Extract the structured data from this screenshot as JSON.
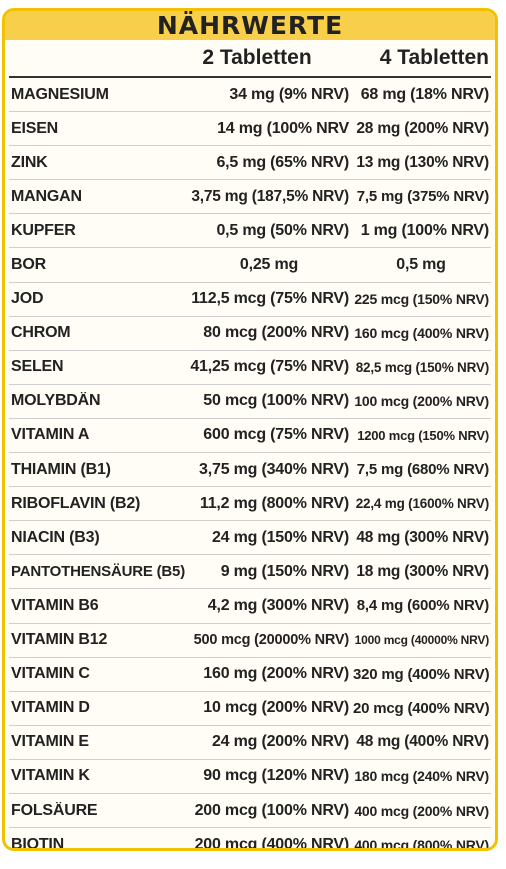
{
  "title": "NÄHRWERTE",
  "columns": [
    "",
    "2 Tabletten",
    "4 Tabletten"
  ],
  "rows": [
    {
      "name": "MAGNESIUM",
      "v2": "34 mg (9% NRV)",
      "v4": "68 mg (18% NRV)"
    },
    {
      "name": "EISEN",
      "v2": "14 mg (100% NRV",
      "v4": "28 mg (200% NRV)"
    },
    {
      "name": "ZINK",
      "v2": "6,5 mg (65% NRV)",
      "v4": "13 mg (130% NRV)"
    },
    {
      "name": "MANGAN",
      "v2": "3,75 mg (187,5% NRV)",
      "v4": "7,5 mg (375% NRV)"
    },
    {
      "name": "KUPFER",
      "v2": "0,5 mg (50% NRV)",
      "v4": "1 mg (100% NRV)"
    },
    {
      "name": "BOR",
      "v2": "0,25 mg",
      "v4": "0,5 mg"
    },
    {
      "name": "JOD",
      "v2": "112,5 mcg (75% NRV)",
      "v4": "225 mcg (150% NRV)"
    },
    {
      "name": "CHROM",
      "v2": "80 mcg (200% NRV)",
      "v4": "160 mcg (400% NRV)"
    },
    {
      "name": "SELEN",
      "v2": "41,25 mcg (75% NRV)",
      "v4": "82,5 mcg (150% NRV)"
    },
    {
      "name": "MOLYBDÄN",
      "v2": "50 mcg (100% NRV)",
      "v4": "100 mcg (200% NRV)"
    },
    {
      "name": "VITAMIN A",
      "v2": "600 mcg (75% NRV)",
      "v4": "1200 mcg (150% NRV)"
    },
    {
      "name": "THIAMIN (B1)",
      "v2": "3,75 mg (340% NRV)",
      "v4": "7,5 mg (680% NRV)"
    },
    {
      "name": "RIBOFLAVIN (B2)",
      "v2": "11,2 mg (800% NRV)",
      "v4": "22,4 mg (1600% NRV)"
    },
    {
      "name": "NIACIN (B3)",
      "v2": "24 mg (150% NRV)",
      "v4": "48 mg (300% NRV)"
    },
    {
      "name": "PANTOTHENSÄURE (B5)",
      "v2": "9 mg (150% NRV)",
      "v4": "18 mg (300% NRV)"
    },
    {
      "name": "VITAMIN B6",
      "v2": "4,2 mg (300% NRV)",
      "v4": "8,4 mg (600% NRV)"
    },
    {
      "name": "VITAMIN B12",
      "v2": "500 mcg (20000% NRV)",
      "v4": "1000 mcg (40000% NRV)"
    },
    {
      "name": "VITAMIN C",
      "v2": "160 mg (200% NRV)",
      "v4": "320 mg (400% NRV)"
    },
    {
      "name": "VITAMIN D",
      "v2": "10 mcg (200% NRV)",
      "v4": "20 mcg (400% NRV)"
    },
    {
      "name": "VITAMIN E",
      "v2": "24 mg (200% NRV)",
      "v4": "48 mg (400% NRV)"
    },
    {
      "name": "VITAMIN K",
      "v2": "90 mcg (120% NRV)",
      "v4": "180 mcg (240% NRV)"
    },
    {
      "name": "FOLSÄURE",
      "v2": "200 mcg (100% NRV)",
      "v4": "400 mcg (200% NRV)"
    },
    {
      "name": "BIOTIN",
      "v2": "200 mcg (400% NRV)",
      "v4": "400 mcg (800% NRV)"
    }
  ],
  "colors": {
    "accent": "#f7cf4a",
    "border": "#f2c200",
    "text": "#222222"
  }
}
